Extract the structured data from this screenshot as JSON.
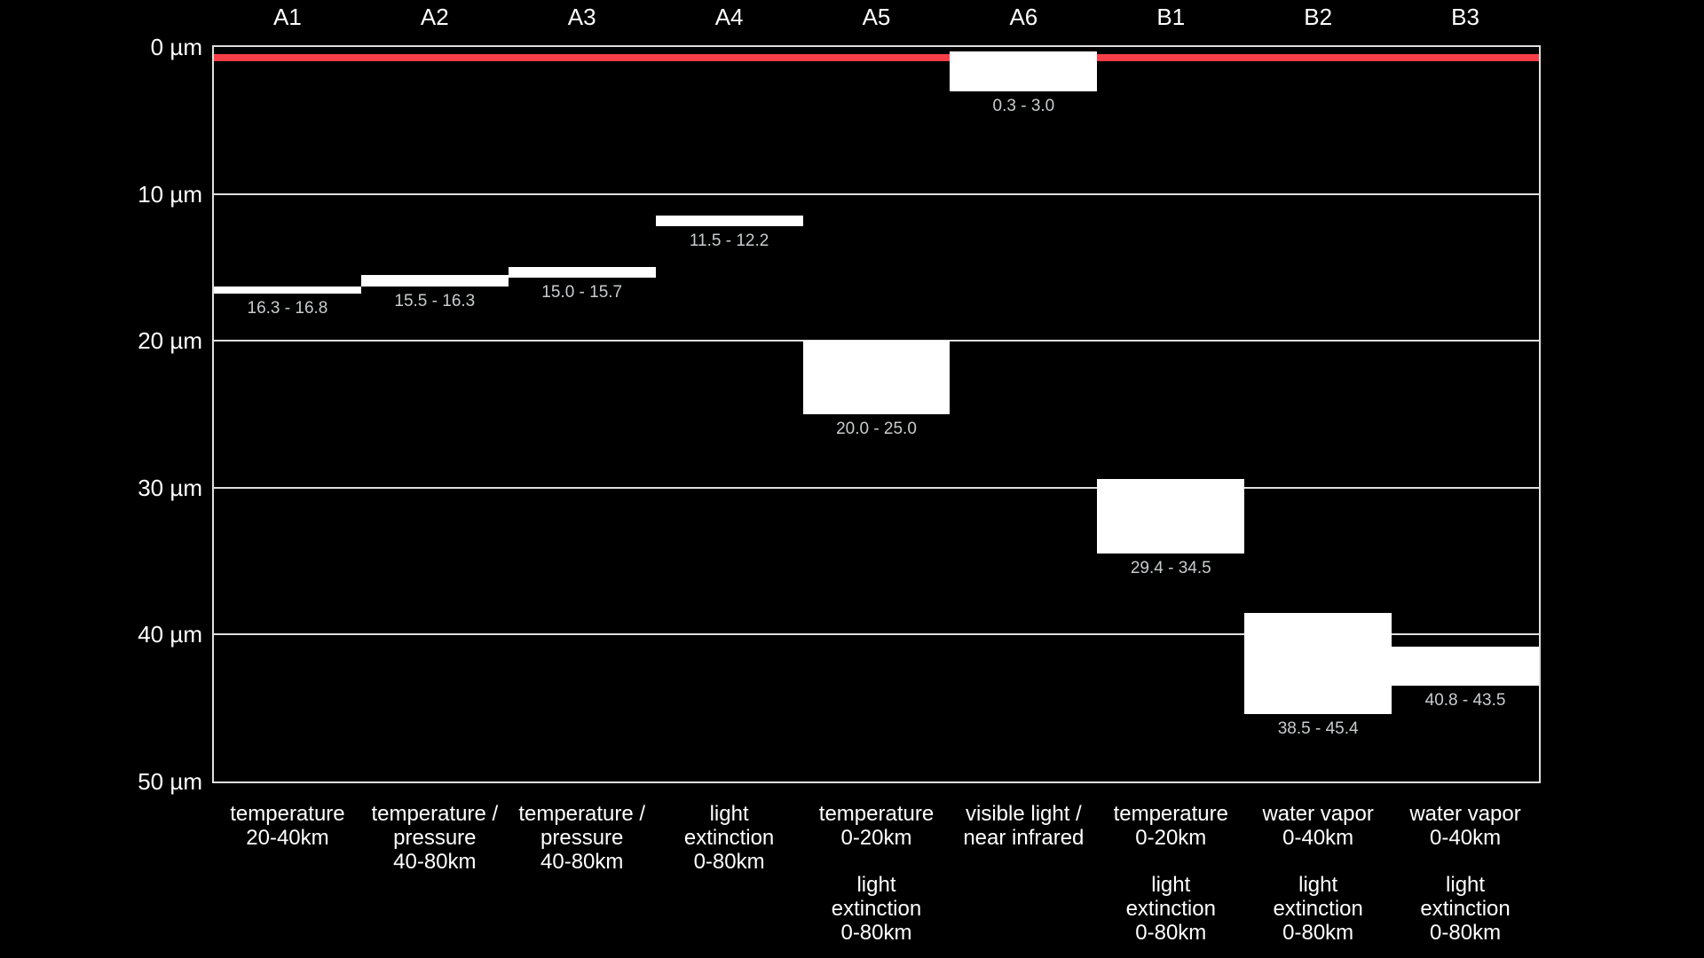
{
  "chart_data": {
    "type": "bar",
    "subtype": "vertical-range-bars",
    "title": "",
    "y_unit": "µm",
    "ylim": [
      0,
      50
    ],
    "y_inverted": true,
    "grid": "horizontal",
    "legend": "none",
    "y_ticks": [
      {
        "value": 0,
        "label": "0 µm"
      },
      {
        "value": 10,
        "label": "10 µm"
      },
      {
        "value": 20,
        "label": "20 µm"
      },
      {
        "value": 30,
        "label": "30 µm"
      },
      {
        "value": 40,
        "label": "40 µm"
      },
      {
        "value": 50,
        "label": "50 µm"
      }
    ],
    "reference_line": {
      "name": "visible-light-line",
      "wavelength_um": 0.7,
      "color": "#f83e47"
    },
    "categories": [
      "A1",
      "A2",
      "A3",
      "A4",
      "A5",
      "A6",
      "B1",
      "B2",
      "B3"
    ],
    "channels": [
      {
        "id": "A1",
        "range_um": [
          16.3,
          16.8
        ],
        "range_label": "16.3 - 16.8",
        "descriptions": [
          [
            "temperature",
            "20-40km"
          ]
        ]
      },
      {
        "id": "A2",
        "range_um": [
          15.5,
          16.3
        ],
        "range_label": "15.5 - 16.3",
        "descriptions": [
          [
            "temperature /",
            "pressure",
            "40-80km"
          ]
        ]
      },
      {
        "id": "A3",
        "range_um": [
          15.0,
          15.7
        ],
        "range_label": "15.0 - 15.7",
        "descriptions": [
          [
            "temperature /",
            "pressure",
            "40-80km"
          ]
        ]
      },
      {
        "id": "A4",
        "range_um": [
          11.5,
          12.2
        ],
        "range_label": "11.5 - 12.2",
        "descriptions": [
          [
            "light",
            "extinction",
            "0-80km"
          ]
        ]
      },
      {
        "id": "A5",
        "range_um": [
          20.0,
          25.0
        ],
        "range_label": "20.0 - 25.0",
        "descriptions": [
          [
            "temperature",
            "0-20km"
          ],
          [
            "light",
            "extinction",
            "0-80km"
          ]
        ]
      },
      {
        "id": "A6",
        "range_um": [
          0.3,
          3.0
        ],
        "range_label": "0.3 - 3.0",
        "descriptions": [
          [
            "visible light /",
            "near infrared"
          ]
        ]
      },
      {
        "id": "B1",
        "range_um": [
          29.4,
          34.5
        ],
        "range_label": "29.4 - 34.5",
        "descriptions": [
          [
            "temperature",
            "0-20km"
          ],
          [
            "light",
            "extinction",
            "0-80km"
          ]
        ]
      },
      {
        "id": "B2",
        "range_um": [
          38.5,
          45.4
        ],
        "range_label": "38.5 - 45.4",
        "descriptions": [
          [
            "water vapor",
            "0-40km"
          ],
          [
            "light",
            "extinction",
            "0-80km"
          ]
        ]
      },
      {
        "id": "B3",
        "range_um": [
          40.8,
          43.5
        ],
        "range_label": "40.8 - 43.5",
        "descriptions": [
          [
            "water vapor",
            "0-40km"
          ],
          [
            "light",
            "extinction",
            "0-80km"
          ]
        ]
      }
    ],
    "colors": {
      "background": "#000000",
      "bar": "#ffffff",
      "grid": "#dfdfdf",
      "text": "#ffffff",
      "range_label": "#c9ccce",
      "reference_line": "#f83e47"
    }
  }
}
